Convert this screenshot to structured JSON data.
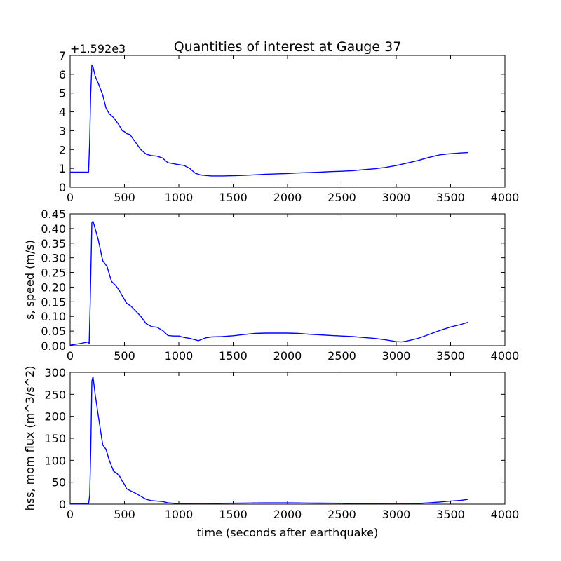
{
  "title": "Quantities of interest at Gauge 37",
  "chart_data": [
    {
      "type": "line",
      "title": "Quantities of interest at Gauge 37",
      "xlabel": "",
      "ylabel": "",
      "y_offset_label": "+1.592e3",
      "xlim": [
        0,
        4000
      ],
      "ylim": [
        0,
        7
      ],
      "x_ticks": [
        "0",
        "500",
        "1000",
        "1500",
        "2000",
        "2500",
        "3000",
        "3500",
        "4000"
      ],
      "y_ticks": [
        "0",
        "1",
        "2",
        "3",
        "4",
        "5",
        "6",
        "7"
      ],
      "grid": false,
      "color": "#0000ff",
      "x": [
        0,
        100,
        170,
        180,
        190,
        200,
        210,
        230,
        260,
        300,
        330,
        360,
        400,
        450,
        480,
        500,
        520,
        550,
        600,
        650,
        700,
        750,
        800,
        850,
        900,
        950,
        1000,
        1050,
        1100,
        1150,
        1200,
        1250,
        1300,
        1400,
        1500,
        1600,
        1700,
        1800,
        1900,
        2000,
        2100,
        2200,
        2300,
        2400,
        2500,
        2600,
        2700,
        2800,
        2900,
        3000,
        3100,
        3200,
        3300,
        3400,
        3500,
        3600,
        3660
      ],
      "y": [
        0.8,
        0.8,
        0.8,
        2.5,
        5.0,
        6.5,
        6.4,
        5.9,
        5.5,
        4.9,
        4.2,
        3.9,
        3.7,
        3.3,
        3.0,
        2.95,
        2.85,
        2.8,
        2.4,
        2.0,
        1.75,
        1.68,
        1.65,
        1.55,
        1.3,
        1.25,
        1.2,
        1.15,
        1.0,
        0.75,
        0.65,
        0.62,
        0.6,
        0.6,
        0.61,
        0.63,
        0.66,
        0.69,
        0.71,
        0.73,
        0.76,
        0.78,
        0.8,
        0.83,
        0.85,
        0.88,
        0.93,
        0.98,
        1.05,
        1.15,
        1.28,
        1.42,
        1.58,
        1.72,
        1.78,
        1.82,
        1.84
      ]
    },
    {
      "type": "line",
      "title": "",
      "xlabel": "",
      "ylabel": "s, speed (m/s)",
      "xlim": [
        0,
        4000
      ],
      "ylim": [
        0,
        0.45
      ],
      "x_ticks": [
        "0",
        "500",
        "1000",
        "1500",
        "2000",
        "2500",
        "3000",
        "3500",
        "4000"
      ],
      "y_ticks": [
        "0.00",
        "0.05",
        "0.10",
        "0.15",
        "0.20",
        "0.25",
        "0.30",
        "0.35",
        "0.40",
        "0.45"
      ],
      "grid": false,
      "color": "#0000ff",
      "x": [
        0,
        50,
        100,
        150,
        170,
        175,
        185,
        200,
        210,
        230,
        260,
        300,
        340,
        380,
        420,
        450,
        480,
        520,
        560,
        600,
        650,
        700,
        750,
        800,
        850,
        900,
        950,
        1000,
        1050,
        1100,
        1150,
        1180,
        1200,
        1250,
        1300,
        1400,
        1500,
        1600,
        1700,
        1800,
        1900,
        2000,
        2100,
        2200,
        2300,
        2400,
        2500,
        2600,
        2700,
        2800,
        2900,
        3000,
        3050,
        3100,
        3200,
        3300,
        3400,
        3500,
        3600,
        3660
      ],
      "y": [
        0.002,
        0.005,
        0.008,
        0.012,
        0.013,
        0.006,
        0.15,
        0.42,
        0.425,
        0.4,
        0.36,
        0.29,
        0.27,
        0.22,
        0.205,
        0.19,
        0.17,
        0.145,
        0.135,
        0.12,
        0.1,
        0.075,
        0.065,
        0.063,
        0.052,
        0.035,
        0.033,
        0.033,
        0.028,
        0.025,
        0.02,
        0.017,
        0.02,
        0.027,
        0.03,
        0.031,
        0.034,
        0.038,
        0.042,
        0.043,
        0.043,
        0.043,
        0.042,
        0.039,
        0.037,
        0.035,
        0.033,
        0.031,
        0.028,
        0.025,
        0.02,
        0.014,
        0.013,
        0.016,
        0.025,
        0.038,
        0.052,
        0.064,
        0.073,
        0.08
      ]
    },
    {
      "type": "line",
      "title": "",
      "xlabel": "time (seconds after earthquake)",
      "ylabel": "hss, mom flux (m^3/s^2)",
      "xlim": [
        0,
        4000
      ],
      "ylim": [
        0,
        300
      ],
      "x_ticks": [
        "0",
        "500",
        "1000",
        "1500",
        "2000",
        "2500",
        "3000",
        "3500",
        "4000"
      ],
      "y_ticks": [
        "0",
        "50",
        "100",
        "150",
        "200",
        "250",
        "300"
      ],
      "grid": false,
      "color": "#0000ff",
      "x": [
        0,
        100,
        170,
        180,
        190,
        200,
        210,
        230,
        260,
        300,
        330,
        360,
        400,
        430,
        460,
        480,
        500,
        520,
        560,
        600,
        650,
        700,
        750,
        800,
        850,
        900,
        950,
        1000,
        1100,
        1200,
        1300,
        1400,
        1500,
        1600,
        1700,
        1800,
        1900,
        2000,
        2100,
        2200,
        2300,
        2400,
        2500,
        2600,
        2700,
        2800,
        2900,
        3000,
        3100,
        3200,
        3300,
        3400,
        3500,
        3600,
        3660
      ],
      "y": [
        0.5,
        0.5,
        0.8,
        20,
        120,
        280,
        290,
        250,
        200,
        135,
        125,
        100,
        75,
        70,
        62,
        52,
        45,
        35,
        30,
        25,
        18,
        11,
        8,
        7,
        6,
        3,
        2,
        1.5,
        1.2,
        1,
        1.5,
        2,
        2.3,
        2.6,
        2.8,
        3,
        3,
        3,
        2.8,
        2.6,
        2.4,
        2.2,
        2,
        1.8,
        1.6,
        1.4,
        1.2,
        1,
        1.2,
        1.8,
        3,
        5,
        7,
        9,
        11
      ]
    }
  ]
}
